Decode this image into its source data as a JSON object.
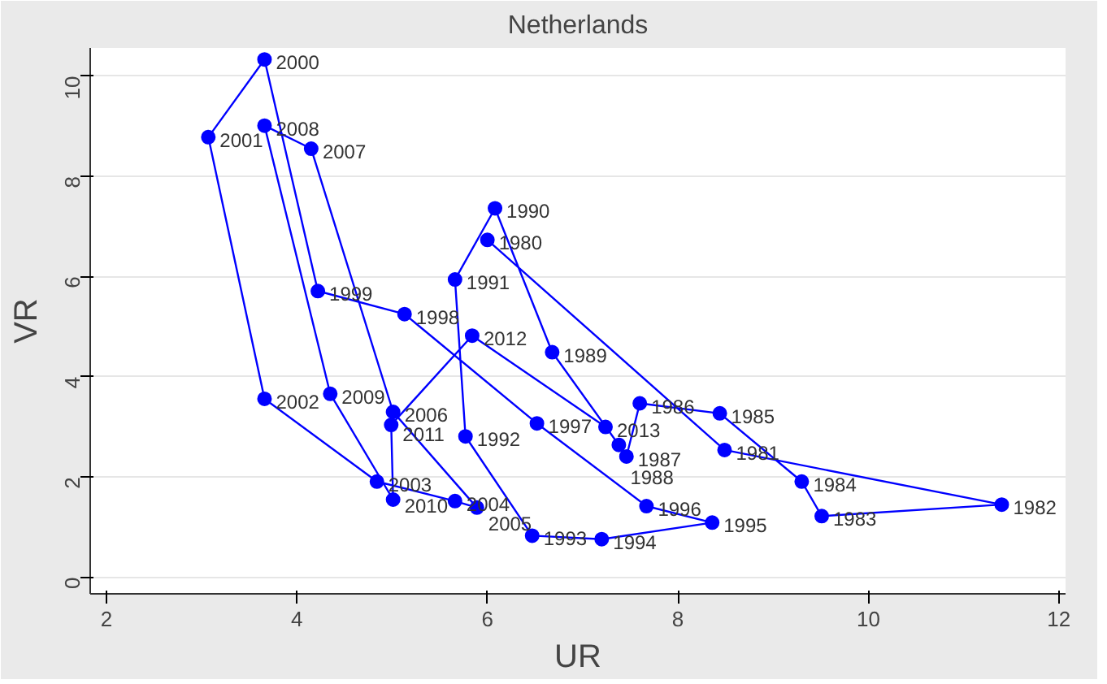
{
  "chart_data": {
    "type": "line",
    "title": "Netherlands",
    "xlabel": "UR",
    "ylabel": "VR",
    "marker": "circle",
    "line_style": "solid",
    "grid": "y",
    "xlim": [
      1.83,
      12.07
    ],
    "ylim": [
      -0.33,
      10.56
    ],
    "xticks": [
      2,
      4,
      6,
      8,
      10,
      12
    ],
    "yticks": [
      0,
      2,
      4,
      6,
      8,
      10
    ],
    "series": [
      {
        "color": "#0000ff",
        "x": [
          6.0,
          8.49,
          11.4,
          9.51,
          9.3,
          8.44,
          7.6,
          7.46,
          7.38,
          6.68,
          6.08,
          5.66,
          5.77,
          6.47,
          7.2,
          8.36,
          7.67,
          6.52,
          5.13,
          4.22,
          3.66,
          3.07,
          3.66,
          4.84,
          5.66,
          5.89,
          5.01,
          4.15,
          3.66,
          4.35,
          5.01,
          4.99,
          5.84,
          7.24
        ],
        "values": [
          6.73,
          2.54,
          1.45,
          1.22,
          1.91,
          3.27,
          3.47,
          2.41,
          2.64,
          4.49,
          7.36,
          5.94,
          2.81,
          0.83,
          0.76,
          1.09,
          1.42,
          3.07,
          5.25,
          5.71,
          10.33,
          8.78,
          3.56,
          1.91,
          1.52,
          1.39,
          3.3,
          8.55,
          9.01,
          3.66,
          1.55,
          3.04,
          4.82,
          3.0
        ]
      }
    ],
    "annotations": [
      {
        "text": "1980",
        "x": 6.0,
        "y": 6.73
      },
      {
        "text": "1981",
        "x": 8.49,
        "y": 2.54
      },
      {
        "text": "1982",
        "x": 11.4,
        "y": 1.45
      },
      {
        "text": "1983",
        "x": 9.51,
        "y": 1.22
      },
      {
        "text": "1984",
        "x": 9.3,
        "y": 1.91
      },
      {
        "text": "1985",
        "x": 8.44,
        "y": 3.27
      },
      {
        "text": "1986",
        "x": 7.6,
        "y": 3.47
      },
      {
        "text": "1987",
        "x": 7.46,
        "y": 2.41
      },
      {
        "text": "1988",
        "x": 7.38,
        "y": 2.64
      },
      {
        "text": "1989",
        "x": 6.68,
        "y": 4.49
      },
      {
        "text": "1990",
        "x": 6.08,
        "y": 7.36
      },
      {
        "text": "1991",
        "x": 5.66,
        "y": 5.94
      },
      {
        "text": "1992",
        "x": 5.77,
        "y": 2.81
      },
      {
        "text": "1993",
        "x": 6.47,
        "y": 0.83
      },
      {
        "text": "1994",
        "x": 7.2,
        "y": 0.76
      },
      {
        "text": "1995",
        "x": 8.36,
        "y": 1.09
      },
      {
        "text": "1996",
        "x": 7.67,
        "y": 1.42
      },
      {
        "text": "1997",
        "x": 6.52,
        "y": 3.07
      },
      {
        "text": "1998",
        "x": 5.13,
        "y": 5.25
      },
      {
        "text": "1999",
        "x": 4.22,
        "y": 5.71
      },
      {
        "text": "2000",
        "x": 3.66,
        "y": 10.33
      },
      {
        "text": "2001",
        "x": 3.07,
        "y": 8.78
      },
      {
        "text": "2002",
        "x": 3.66,
        "y": 3.56
      },
      {
        "text": "2003",
        "x": 4.84,
        "y": 1.91
      },
      {
        "text": "2004",
        "x": 5.66,
        "y": 1.52
      },
      {
        "text": "2005",
        "x": 5.89,
        "y": 1.39
      },
      {
        "text": "2006",
        "x": 5.01,
        "y": 3.3
      },
      {
        "text": "2007",
        "x": 4.15,
        "y": 8.55
      },
      {
        "text": "2008",
        "x": 3.66,
        "y": 9.01
      },
      {
        "text": "2009",
        "x": 4.35,
        "y": 3.66
      },
      {
        "text": "2010",
        "x": 5.01,
        "y": 1.55
      },
      {
        "text": "2011",
        "x": 4.99,
        "y": 3.04
      },
      {
        "text": "2012",
        "x": 5.84,
        "y": 4.82
      },
      {
        "text": "2013",
        "x": 7.24,
        "y": 3.0
      }
    ]
  }
}
